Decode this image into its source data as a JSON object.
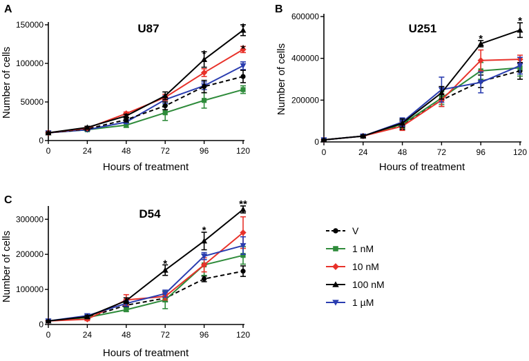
{
  "chart_data": [
    {
      "type": "line",
      "panel_label": "A",
      "title": "U87",
      "xlabel": "Hours of treatment",
      "ylabel": "Number of cells",
      "x": [
        0,
        24,
        48,
        72,
        96,
        120
      ],
      "xticks": [
        "0",
        "24",
        "48",
        "72",
        "96",
        "120"
      ],
      "ylim": [
        0,
        150000
      ],
      "yticks": [
        0,
        50000,
        100000,
        150000
      ],
      "ytick_labels": [
        "0",
        "50000",
        "100000",
        "150000"
      ],
      "series": [
        {
          "name": "V",
          "values": [
            10000,
            15000,
            27000,
            45000,
            70000,
            83000
          ],
          "errors": [
            1000,
            1500,
            3000,
            5000,
            8000,
            8000
          ]
        },
        {
          "name": "1 nM",
          "values": [
            10000,
            14000,
            20000,
            36000,
            52000,
            66000
          ],
          "errors": [
            1000,
            1500,
            3000,
            10000,
            10000,
            5000
          ]
        },
        {
          "name": "10 nM",
          "values": [
            10000,
            16000,
            35000,
            56000,
            88000,
            118000
          ],
          "errors": [
            1000,
            1500,
            2000,
            4000,
            5000,
            4000
          ]
        },
        {
          "name": "100 nM",
          "values": [
            10000,
            17000,
            32000,
            58000,
            105000,
            143000
          ],
          "errors": [
            1000,
            1500,
            2000,
            5000,
            10000,
            7000
          ]
        },
        {
          "name": "1 µM",
          "values": [
            10000,
            14000,
            24000,
            53000,
            71000,
            97000
          ],
          "errors": [
            1000,
            1500,
            2000,
            5000,
            5000,
            5000
          ]
        }
      ],
      "annotations": [
        {
          "x": 96,
          "text": "*",
          "above": 115000
        },
        {
          "x": 120,
          "text": "*",
          "above": 150000
        },
        {
          "x": 120,
          "text": "*",
          "above": 122000
        }
      ]
    },
    {
      "type": "line",
      "panel_label": "B",
      "title": "U251",
      "xlabel": "Hours of treatment",
      "ylabel": "Number of cells",
      "x": [
        0,
        24,
        48,
        72,
        96,
        120
      ],
      "xticks": [
        "0",
        "24",
        "48",
        "72",
        "96",
        "120"
      ],
      "ylim": [
        0,
        600000
      ],
      "yticks": [
        0,
        200000,
        400000,
        600000
      ],
      "ytick_labels": [
        "0",
        "200000",
        "400000",
        "600000"
      ],
      "series": [
        {
          "name": "V",
          "values": [
            10000,
            28000,
            80000,
            200000,
            290000,
            340000
          ],
          "errors": [
            3000,
            5000,
            20000,
            30000,
            30000,
            40000
          ]
        },
        {
          "name": "1 nM",
          "values": [
            10000,
            28000,
            85000,
            210000,
            340000,
            355000
          ],
          "errors": [
            3000,
            5000,
            20000,
            30000,
            40000,
            40000
          ]
        },
        {
          "name": "10 nM",
          "values": [
            10000,
            28000,
            75000,
            200000,
            390000,
            395000
          ],
          "errors": [
            3000,
            5000,
            20000,
            30000,
            50000,
            20000
          ]
        },
        {
          "name": "100 nM",
          "values": [
            10000,
            28000,
            90000,
            235000,
            470000,
            535000
          ],
          "errors": [
            3000,
            5000,
            20000,
            30000,
            15000,
            35000
          ]
        },
        {
          "name": "1 µM",
          "values": [
            10000,
            28000,
            95000,
            250000,
            285000,
            365000
          ],
          "errors": [
            3000,
            5000,
            20000,
            60000,
            50000,
            40000
          ]
        }
      ],
      "annotations": [
        {
          "x": 96,
          "text": "*",
          "above": 505000
        },
        {
          "x": 120,
          "text": "*",
          "above": 590000
        }
      ]
    },
    {
      "type": "line",
      "panel_label": "C",
      "title": "D54",
      "xlabel": "Hours of treatment",
      "ylabel": "Number of cells",
      "x": [
        0,
        24,
        48,
        72,
        96,
        120
      ],
      "xticks": [
        "0",
        "24",
        "48",
        "72",
        "96",
        "120"
      ],
      "ylim": [
        0,
        330000
      ],
      "yticks": [
        0,
        100000,
        200000,
        300000
      ],
      "ytick_labels": [
        "0",
        "100000",
        "200000",
        "300000"
      ],
      "series": [
        {
          "name": "V",
          "values": [
            10000,
            20000,
            55000,
            75000,
            130000,
            152000
          ],
          "errors": [
            2000,
            4000,
            5000,
            10000,
            8000,
            15000
          ]
        },
        {
          "name": "1 nM",
          "values": [
            10000,
            20000,
            42000,
            70000,
            170000,
            197000
          ],
          "errors": [
            2000,
            4000,
            5000,
            25000,
            30000,
            25000
          ]
        },
        {
          "name": "10 nM",
          "values": [
            10000,
            15000,
            70000,
            80000,
            170000,
            262000
          ],
          "errors": [
            2000,
            4000,
            15000,
            10000,
            20000,
            45000
          ]
        },
        {
          "name": "100 nM",
          "values": [
            10000,
            22000,
            68000,
            155000,
            238000,
            328000
          ],
          "errors": [
            2000,
            4000,
            8000,
            15000,
            25000,
            10000
          ]
        },
        {
          "name": "1 µM",
          "values": [
            10000,
            25000,
            60000,
            88000,
            195000,
            225000
          ],
          "errors": [
            2000,
            4000,
            8000,
            10000,
            10000,
            25000
          ]
        }
      ],
      "annotations": [
        {
          "x": 72,
          "text": "*",
          "above": 180000
        },
        {
          "x": 96,
          "text": "*",
          "above": 275000
        },
        {
          "x": 120,
          "text": "**",
          "above": 350000
        }
      ]
    }
  ],
  "legend": {
    "items": [
      {
        "label": "V",
        "color": "#000000",
        "marker": "circle",
        "dashed": true
      },
      {
        "label": "1 nM",
        "color": "#2e8b3a",
        "marker": "square",
        "dashed": false
      },
      {
        "label": "10 nM",
        "color": "#e8322a",
        "marker": "diamond",
        "dashed": false
      },
      {
        "label": "100 nM",
        "color": "#000000",
        "marker": "triangle-up",
        "dashed": false
      },
      {
        "label": "1 µM",
        "color": "#2a3db0",
        "marker": "triangle-down",
        "dashed": false
      }
    ]
  }
}
